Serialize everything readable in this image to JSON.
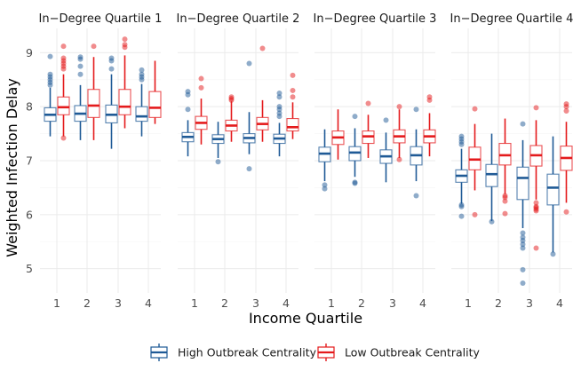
{
  "chart_data": {
    "type": "box",
    "ylabel": "Weighted Infection Delay",
    "xlabel": "Income Quartile",
    "ylim": [
      4.55,
      9.45
    ],
    "yticks": [
      5,
      6,
      7,
      8,
      9
    ],
    "categories": [
      "1",
      "2",
      "3",
      "4"
    ],
    "colors": {
      "high": "#1f5a96",
      "low": "#e41a1c"
    },
    "legend": [
      {
        "key": "high",
        "label": "High Outbreak Centrality"
      },
      {
        "key": "low",
        "label": "Low Outbreak Centrality"
      }
    ],
    "legend_position": "bottom",
    "panels": [
      {
        "title": "In−Degree Quartile 1",
        "high": [
          {
            "q1": 7.73,
            "med": 7.85,
            "q3": 7.98,
            "lo": 7.45,
            "hi": 8.35,
            "out": [
              8.4,
              8.45,
              8.5,
              8.55,
              8.6,
              8.93
            ]
          },
          {
            "q1": 7.73,
            "med": 7.87,
            "q3": 8.02,
            "lo": 7.38,
            "hi": 8.4,
            "out": [
              8.6,
              8.75,
              8.88,
              8.92
            ]
          },
          {
            "q1": 7.7,
            "med": 7.85,
            "q3": 8.03,
            "lo": 7.22,
            "hi": 8.6,
            "out": [
              8.7,
              8.85,
              8.9
            ]
          },
          {
            "q1": 7.73,
            "med": 7.82,
            "q3": 8.0,
            "lo": 7.45,
            "hi": 8.42,
            "out": [
              8.5,
              8.55,
              8.6,
              8.68
            ]
          }
        ],
        "low": [
          {
            "q1": 7.85,
            "med": 7.99,
            "q3": 8.18,
            "lo": 7.45,
            "hi": 8.6,
            "out": [
              7.42,
              8.7,
              8.75,
              8.8,
              8.85,
              8.9,
              9.12
            ]
          },
          {
            "q1": 7.8,
            "med": 8.02,
            "q3": 8.32,
            "lo": 7.38,
            "hi": 8.92,
            "out": [
              9.12
            ]
          },
          {
            "q1": 7.85,
            "med": 8.0,
            "q3": 8.32,
            "lo": 7.6,
            "hi": 8.95,
            "out": [
              9.1,
              9.15,
              9.25
            ]
          },
          {
            "q1": 7.8,
            "med": 7.98,
            "q3": 8.28,
            "lo": 7.68,
            "hi": 8.85,
            "out": []
          }
        ]
      },
      {
        "title": "In−Degree Quartile 2",
        "high": [
          {
            "q1": 7.35,
            "med": 7.44,
            "q3": 7.52,
            "lo": 7.08,
            "hi": 7.75,
            "out": [
              7.95,
              8.22,
              8.28
            ]
          },
          {
            "q1": 7.32,
            "med": 7.4,
            "q3": 7.48,
            "lo": 7.05,
            "hi": 7.72,
            "out": [
              6.98
            ]
          },
          {
            "q1": 7.33,
            "med": 7.42,
            "q3": 7.5,
            "lo": 7.12,
            "hi": 7.9,
            "out": [
              6.85,
              8.8
            ]
          },
          {
            "q1": 7.32,
            "med": 7.41,
            "q3": 7.49,
            "lo": 7.08,
            "hi": 7.7,
            "out": [
              7.82,
              7.88,
              7.95,
              8.0,
              8.18,
              8.25
            ]
          }
        ],
        "low": [
          {
            "q1": 7.58,
            "med": 7.7,
            "q3": 7.82,
            "lo": 7.3,
            "hi": 8.15,
            "out": [
              8.35,
              8.52
            ]
          },
          {
            "q1": 7.55,
            "med": 7.65,
            "q3": 7.75,
            "lo": 7.35,
            "hi": 8.1,
            "out": [
              8.12,
              8.15,
              8.18
            ]
          },
          {
            "q1": 7.57,
            "med": 7.68,
            "q3": 7.8,
            "lo": 7.35,
            "hi": 8.12,
            "out": [
              9.08
            ]
          },
          {
            "q1": 7.55,
            "med": 7.62,
            "q3": 7.78,
            "lo": 7.4,
            "hi": 8.08,
            "out": [
              8.18,
              8.3,
              8.58
            ]
          }
        ]
      },
      {
        "title": "In−Degree Quartile 3",
        "high": [
          {
            "q1": 6.98,
            "med": 7.13,
            "q3": 7.25,
            "lo": 6.62,
            "hi": 7.58,
            "out": [
              6.48,
              6.55
            ]
          },
          {
            "q1": 7.0,
            "med": 7.15,
            "q3": 7.26,
            "lo": 6.7,
            "hi": 7.6,
            "out": [
              6.58,
              6.6,
              7.82
            ]
          },
          {
            "q1": 6.95,
            "med": 7.08,
            "q3": 7.2,
            "lo": 6.6,
            "hi": 7.52,
            "out": [
              7.75
            ]
          },
          {
            "q1": 6.92,
            "med": 7.1,
            "q3": 7.26,
            "lo": 6.62,
            "hi": 7.58,
            "out": [
              6.35,
              7.95
            ]
          }
        ],
        "low": [
          {
            "q1": 7.3,
            "med": 7.43,
            "q3": 7.55,
            "lo": 7.02,
            "hi": 7.95,
            "out": []
          },
          {
            "q1": 7.32,
            "med": 7.45,
            "q3": 7.55,
            "lo": 7.05,
            "hi": 7.85,
            "out": [
              8.06
            ]
          },
          {
            "q1": 7.33,
            "med": 7.45,
            "q3": 7.57,
            "lo": 7.05,
            "hi": 7.95,
            "out": [
              7.02,
              8.0
            ]
          },
          {
            "q1": 7.33,
            "med": 7.45,
            "q3": 7.57,
            "lo": 7.08,
            "hi": 7.88,
            "out": [
              8.12,
              8.18
            ]
          }
        ]
      },
      {
        "title": "In−Degree Quartile 4",
        "high": [
          {
            "q1": 6.6,
            "med": 6.72,
            "q3": 6.83,
            "lo": 6.2,
            "hi": 7.22,
            "out": [
              5.97,
              6.15,
              6.18,
              7.3,
              7.35,
              7.4,
              7.45
            ]
          },
          {
            "q1": 6.52,
            "med": 6.75,
            "q3": 6.93,
            "lo": 5.88,
            "hi": 7.5,
            "out": [
              5.87
            ]
          },
          {
            "q1": 6.28,
            "med": 6.68,
            "q3": 6.88,
            "lo": 5.75,
            "hi": 7.38,
            "out": [
              4.73,
              4.98,
              5.38,
              5.45,
              5.52,
              5.58,
              5.66,
              7.68
            ]
          },
          {
            "q1": 6.18,
            "med": 6.5,
            "q3": 6.75,
            "lo": 5.3,
            "hi": 7.45,
            "out": [
              5.27
            ]
          }
        ],
        "low": [
          {
            "q1": 6.83,
            "med": 7.02,
            "q3": 7.25,
            "lo": 6.45,
            "hi": 7.68,
            "out": [
              6.0,
              7.96
            ]
          },
          {
            "q1": 6.92,
            "med": 7.1,
            "q3": 7.32,
            "lo": 6.38,
            "hi": 7.78,
            "out": [
              6.02,
              6.25,
              6.32,
              6.35
            ]
          },
          {
            "q1": 6.9,
            "med": 7.1,
            "q3": 7.28,
            "lo": 6.28,
            "hi": 7.75,
            "out": [
              5.38,
              6.07,
              6.1,
              6.13,
              6.15,
              6.22,
              7.98
            ]
          },
          {
            "q1": 6.82,
            "med": 7.05,
            "q3": 7.27,
            "lo": 6.22,
            "hi": 7.72,
            "out": [
              6.05,
              7.92,
              8.0,
              8.05
            ]
          }
        ]
      }
    ]
  }
}
